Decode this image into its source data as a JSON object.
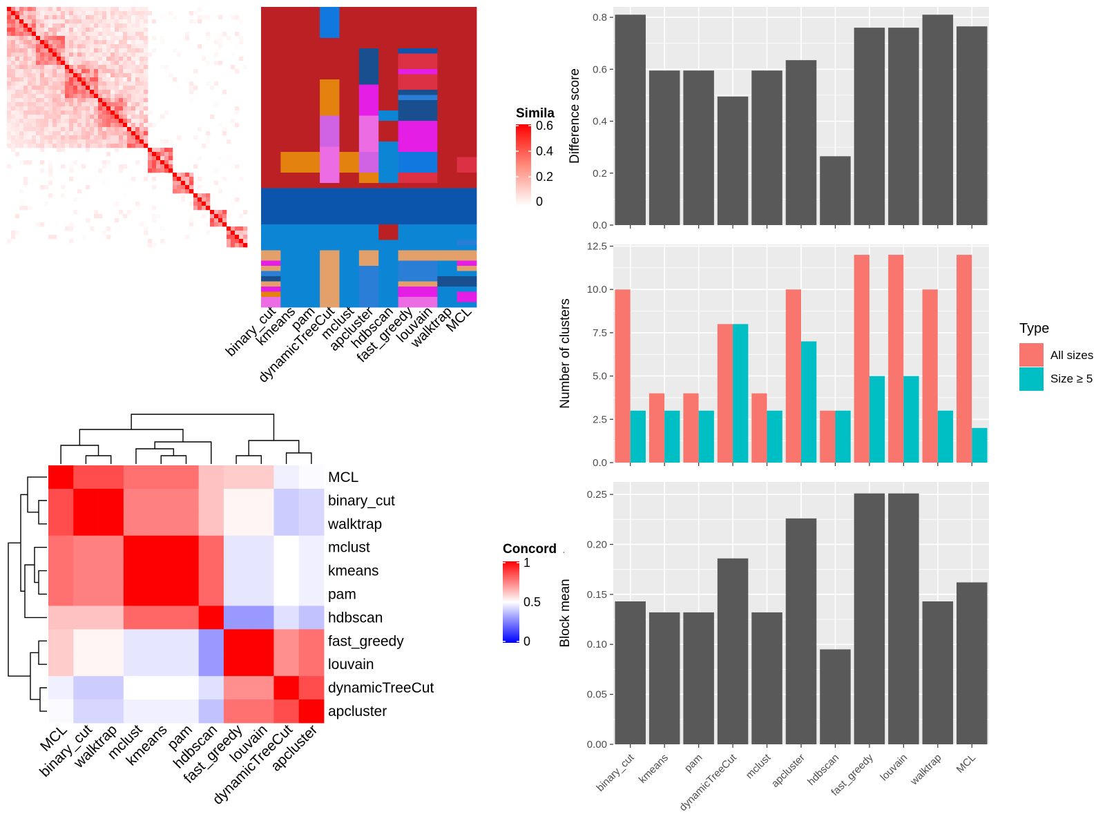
{
  "colors": {
    "panel_bg": "#ebebeb",
    "grid": "#ffffff",
    "bar_dark": "#595959",
    "all_sizes": "#f8766d",
    "size_ge5": "#00bfc4",
    "heat_max": "#ff0000",
    "heat_min": "#ffffff",
    "conc_low": "#0000ff",
    "conc_mid": "#ffffff",
    "conc_high": "#ff0000"
  },
  "similarity_heatmap": {
    "legend_title": "Simila",
    "legend_ticks": [
      "0.6",
      "0.4",
      "0.2",
      "0"
    ]
  },
  "membership_heatmap": {
    "methods": [
      "binary_cut",
      "kmeans",
      "pam",
      "dynamicTreeCut",
      "mclust",
      "apcluster",
      "hdbscan",
      "fast_greedy",
      "louvain",
      "walktrap",
      "MCL"
    ]
  },
  "concordance_heatmap": {
    "legend_title": "Concorda",
    "legend_ticks": [
      "1",
      "0.5",
      "0"
    ],
    "row_labels": [
      "MCL",
      "binary_cut",
      "walktrap",
      "mclust",
      "kmeans",
      "pam",
      "hdbscan",
      "fast_greedy",
      "louvain",
      "dynamicTreeCut",
      "apcluster"
    ],
    "col_labels": [
      "MCL",
      "binary_cut",
      "walktrap",
      "mclust",
      "kmeans",
      "pam",
      "hdbscan",
      "fast_greedy",
      "louvain",
      "dynamicTreeCut",
      "apcluster"
    ],
    "matrix": [
      [
        1.0,
        0.85,
        0.85,
        0.78,
        0.78,
        0.78,
        0.62,
        0.6,
        0.6,
        0.47,
        0.49
      ],
      [
        0.85,
        1.0,
        1.0,
        0.75,
        0.75,
        0.75,
        0.62,
        0.52,
        0.52,
        0.4,
        0.42
      ],
      [
        0.85,
        1.0,
        1.0,
        0.75,
        0.75,
        0.75,
        0.62,
        0.52,
        0.52,
        0.4,
        0.42
      ],
      [
        0.78,
        0.75,
        0.75,
        1.0,
        1.0,
        1.0,
        0.8,
        0.45,
        0.45,
        0.5,
        0.47
      ],
      [
        0.78,
        0.75,
        0.75,
        1.0,
        1.0,
        1.0,
        0.8,
        0.45,
        0.45,
        0.5,
        0.47
      ],
      [
        0.78,
        0.75,
        0.75,
        1.0,
        1.0,
        1.0,
        0.8,
        0.45,
        0.45,
        0.5,
        0.47
      ],
      [
        0.62,
        0.62,
        0.62,
        0.8,
        0.8,
        0.8,
        1.0,
        0.3,
        0.3,
        0.44,
        0.38
      ],
      [
        0.6,
        0.52,
        0.52,
        0.45,
        0.45,
        0.45,
        0.3,
        1.0,
        1.0,
        0.72,
        0.78
      ],
      [
        0.6,
        0.52,
        0.52,
        0.45,
        0.45,
        0.45,
        0.3,
        1.0,
        1.0,
        0.72,
        0.78
      ],
      [
        0.47,
        0.4,
        0.4,
        0.5,
        0.5,
        0.5,
        0.44,
        0.72,
        0.72,
        1.0,
        0.85
      ],
      [
        0.49,
        0.42,
        0.42,
        0.47,
        0.47,
        0.47,
        0.38,
        0.78,
        0.78,
        0.85,
        1.0
      ]
    ]
  },
  "chart_data": [
    {
      "type": "bar",
      "ylabel": "Difference score",
      "categories": [
        "binary_cut",
        "kmeans",
        "pam",
        "dynamicTreeCut",
        "mclust",
        "apcluster",
        "hdbscan",
        "fast_greedy",
        "louvain",
        "walktrap",
        "MCL"
      ],
      "values": [
        0.81,
        0.595,
        0.595,
        0.495,
        0.595,
        0.635,
        0.265,
        0.76,
        0.76,
        0.81,
        0.765
      ],
      "ylim": [
        0,
        0.84
      ],
      "yticks": [
        "0.0",
        "0.2",
        "0.4",
        "0.6",
        "0.8"
      ]
    },
    {
      "type": "bar",
      "ylabel": "Number of clusters",
      "categories": [
        "binary_cut",
        "kmeans",
        "pam",
        "dynamicTreeCut",
        "mclust",
        "apcluster",
        "hdbscan",
        "fast_greedy",
        "louvain",
        "walktrap",
        "MCL"
      ],
      "series": [
        {
          "name": "All sizes",
          "values": [
            10,
            4,
            4,
            8,
            4,
            10,
            3,
            12,
            12,
            10,
            12
          ]
        },
        {
          "name": "Size ≥ 5",
          "values": [
            3,
            3,
            3,
            8,
            3,
            7,
            3,
            5,
            5,
            3,
            2
          ]
        }
      ],
      "ylim": [
        0,
        12.6
      ],
      "yticks": [
        "0.0",
        "2.5",
        "5.0",
        "7.5",
        "10.0",
        "12.5"
      ],
      "legend": {
        "title": "Type",
        "position": "right"
      }
    },
    {
      "type": "bar",
      "ylabel": "Block mean",
      "categories": [
        "binary_cut",
        "kmeans",
        "pam",
        "dynamicTreeCut",
        "mclust",
        "apcluster",
        "hdbscan",
        "fast_greedy",
        "louvain",
        "walktrap",
        "MCL"
      ],
      "values": [
        0.143,
        0.132,
        0.132,
        0.186,
        0.132,
        0.226,
        0.095,
        0.251,
        0.251,
        0.143,
        0.162
      ],
      "ylim": [
        0,
        0.2625
      ],
      "yticks": [
        "0.00",
        "0.05",
        "0.10",
        "0.15",
        "0.20",
        "0.25"
      ]
    }
  ]
}
